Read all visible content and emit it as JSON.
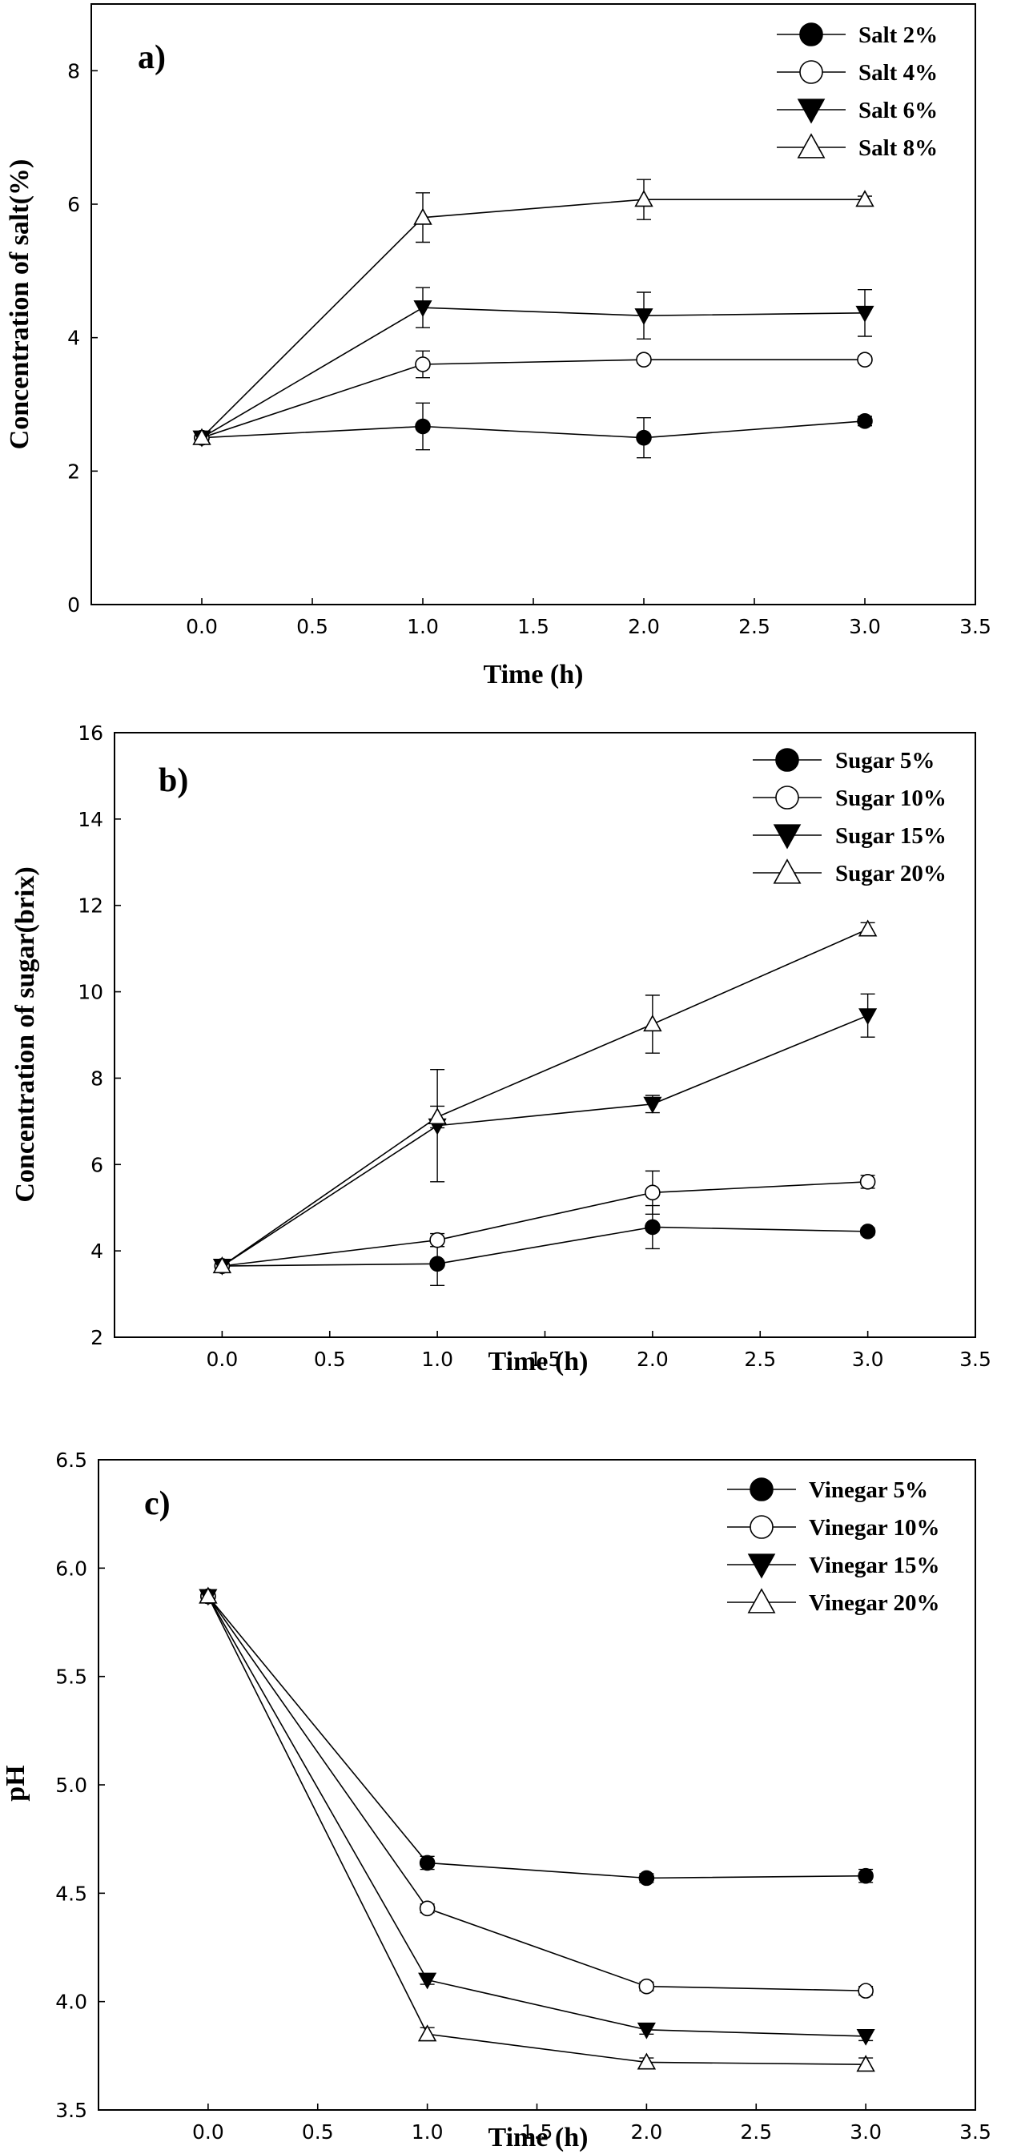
{
  "chart_data": [
    {
      "type": "line",
      "panel_label": "a)",
      "xlabel": "Time (h)",
      "ylabel": "Concentration of salt(%)",
      "xlim": [
        -0.5,
        3.5
      ],
      "ylim": [
        0,
        9
      ],
      "xticks": [
        "0.0",
        "0.5",
        "1.0",
        "1.5",
        "2.0",
        "2.5",
        "3.0",
        "3.5"
      ],
      "yticks": [
        "0",
        "2",
        "4",
        "6",
        "8"
      ],
      "grid": false,
      "legend_position": "top-right",
      "x": [
        0,
        1,
        2,
        3
      ],
      "series": [
        {
          "name": "Salt 2%",
          "marker": "filled-circle",
          "values": [
            2.5,
            2.67,
            2.5,
            2.75
          ],
          "errors": [
            0.05,
            0.35,
            0.3,
            0.07
          ]
        },
        {
          "name": "Salt 4%",
          "marker": "open-circle",
          "values": [
            2.5,
            3.6,
            3.67,
            3.67
          ],
          "errors": [
            0.05,
            0.2,
            0.05,
            0.05
          ]
        },
        {
          "name": "Salt 6%",
          "marker": "filled-triangle-down",
          "values": [
            2.5,
            4.45,
            4.33,
            4.37
          ],
          "errors": [
            0.05,
            0.3,
            0.35,
            0.35
          ]
        },
        {
          "name": "Salt 8%",
          "marker": "open-triangle-up",
          "values": [
            2.5,
            5.8,
            6.07,
            6.07
          ],
          "errors": [
            0.05,
            0.37,
            0.3,
            0.05
          ]
        }
      ]
    },
    {
      "type": "line",
      "panel_label": "b)",
      "xlabel": "Time (h)",
      "ylabel": "Concentration of sugar(brix)",
      "xlim": [
        -0.5,
        3.5
      ],
      "ylim": [
        2,
        16
      ],
      "xticks": [
        "0.0",
        "0.5",
        "1.0",
        "1.5",
        "2.0",
        "2.5",
        "3.0",
        "3.5"
      ],
      "yticks": [
        "2",
        "4",
        "6",
        "8",
        "10",
        "12",
        "14",
        "16"
      ],
      "grid": false,
      "legend_position": "top-right",
      "x": [
        0,
        1,
        2,
        3
      ],
      "series": [
        {
          "name": "Sugar 5%",
          "marker": "filled-circle",
          "values": [
            3.65,
            3.7,
            4.55,
            4.45
          ],
          "errors": [
            0.1,
            0.5,
            0.5,
            0.08
          ]
        },
        {
          "name": "Sugar 10%",
          "marker": "open-circle",
          "values": [
            3.65,
            4.25,
            5.35,
            5.6
          ],
          "errors": [
            0.1,
            0.15,
            0.5,
            0.15
          ]
        },
        {
          "name": "Sugar 15%",
          "marker": "filled-triangle-down",
          "values": [
            3.65,
            6.9,
            7.4,
            9.45
          ],
          "errors": [
            0.1,
            1.3,
            0.2,
            0.5
          ]
        },
        {
          "name": "Sugar 20%",
          "marker": "open-triangle-up",
          "values": [
            3.65,
            7.1,
            9.25,
            11.45
          ],
          "errors": [
            0.1,
            0.25,
            0.67,
            0.15
          ]
        }
      ]
    },
    {
      "type": "line",
      "panel_label": "c)",
      "xlabel": "Time (h)",
      "ylabel": "pH",
      "xlim": [
        -0.5,
        3.5
      ],
      "ylim": [
        3.5,
        6.5
      ],
      "xticks": [
        "0.0",
        "0.5",
        "1.0",
        "1.5",
        "2.0",
        "2.5",
        "3.0",
        "3.5"
      ],
      "yticks": [
        "3.5",
        "4.0",
        "4.5",
        "5.0",
        "5.5",
        "6.0",
        "6.5"
      ],
      "grid": false,
      "legend_position": "top-right",
      "x": [
        0,
        1,
        2,
        3
      ],
      "series": [
        {
          "name": "Vinegar 5%",
          "marker": "filled-circle",
          "values": [
            5.87,
            4.64,
            4.57,
            4.58
          ],
          "errors": [
            0.03,
            0.03,
            0.02,
            0.03
          ]
        },
        {
          "name": "Vinegar 10%",
          "marker": "open-circle",
          "values": [
            5.87,
            4.43,
            4.07,
            4.05
          ],
          "errors": [
            0.03,
            0.02,
            0.02,
            0.02
          ]
        },
        {
          "name": "Vinegar 15%",
          "marker": "filled-triangle-down",
          "values": [
            5.87,
            4.1,
            3.87,
            3.84
          ],
          "errors": [
            0.03,
            0.02,
            0.02,
            0.02
          ]
        },
        {
          "name": "Vinegar 20%",
          "marker": "open-triangle-up",
          "values": [
            5.87,
            3.85,
            3.72,
            3.71
          ],
          "errors": [
            0.03,
            0.03,
            0.02,
            0.03
          ]
        }
      ]
    }
  ]
}
